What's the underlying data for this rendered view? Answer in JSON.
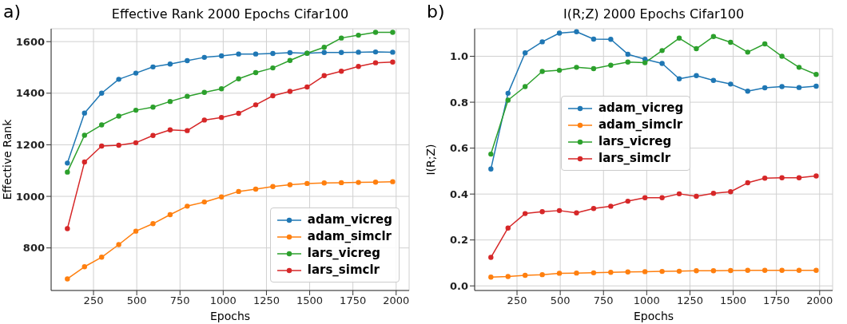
{
  "chart_data": [
    {
      "type": "line",
      "title": "Effective Rank 2000 Epochs Cifar100",
      "xlabel": "Epochs",
      "ylabel": "Effective Rank",
      "annotations": [
        "a)"
      ],
      "x": [
        99,
        198,
        297,
        396,
        495,
        594,
        693,
        792,
        891,
        990,
        1089,
        1188,
        1287,
        1386,
        1485,
        1584,
        1683,
        1782,
        1881,
        1980
      ],
      "series": [
        {
          "name": "adam_vicreg",
          "color": "#1f77b4",
          "values": [
            1129,
            1323,
            1400,
            1454,
            1478,
            1502,
            1513,
            1526,
            1539,
            1545,
            1552,
            1552,
            1554,
            1557,
            1555,
            1558,
            1558,
            1559,
            1560,
            1559
          ]
        },
        {
          "name": "adam_simclr",
          "color": "#ff7f0e",
          "values": [
            680,
            727,
            764,
            813,
            865,
            894,
            929,
            962,
            978,
            998,
            1019,
            1028,
            1038,
            1045,
            1050,
            1052,
            1053,
            1054,
            1055,
            1057
          ]
        },
        {
          "name": "lars_vicreg",
          "color": "#2ca02c",
          "values": [
            1094,
            1237,
            1277,
            1311,
            1334,
            1346,
            1368,
            1388,
            1403,
            1417,
            1456,
            1480,
            1498,
            1527,
            1555,
            1578,
            1614,
            1625,
            1636,
            1636
          ]
        },
        {
          "name": "lars_simclr",
          "color": "#d62728",
          "values": [
            875,
            1133,
            1195,
            1198,
            1208,
            1236,
            1258,
            1255,
            1296,
            1306,
            1322,
            1355,
            1390,
            1407,
            1424,
            1468,
            1485,
            1504,
            1518,
            1521
          ]
        }
      ],
      "xlim": [
        5,
        2075
      ],
      "xticks": [
        250,
        500,
        750,
        1000,
        1250,
        1500,
        1750,
        2000
      ],
      "ylim": [
        635,
        1650
      ],
      "yticks": [
        800,
        1000,
        1200,
        1400,
        1600
      ],
      "grid": true,
      "legend": "bottom right",
      "marker": "circle",
      "line_style": "solid"
    },
    {
      "type": "line",
      "title": "I(R;Z) 2000 Epochs Cifar100",
      "xlabel": "Epochs",
      "ylabel": "I(R;Z)",
      "annotations": [
        "b)"
      ],
      "x": [
        99,
        198,
        297,
        396,
        495,
        594,
        693,
        792,
        891,
        990,
        1089,
        1188,
        1287,
        1386,
        1485,
        1584,
        1683,
        1782,
        1881,
        1980
      ],
      "series": [
        {
          "name": "adam_vicreg",
          "color": "#1f77b4",
          "values": [
            0.509,
            0.839,
            1.015,
            1.063,
            1.101,
            1.107,
            1.075,
            1.074,
            1.009,
            0.987,
            0.969,
            0.902,
            0.916,
            0.895,
            0.879,
            0.848,
            0.863,
            0.868,
            0.864,
            0.87
          ]
        },
        {
          "name": "adam_simclr",
          "color": "#ff7f0e",
          "values": [
            0.038,
            0.041,
            0.046,
            0.049,
            0.055,
            0.056,
            0.057,
            0.059,
            0.061,
            0.062,
            0.063,
            0.064,
            0.066,
            0.066,
            0.067,
            0.068,
            0.068,
            0.068,
            0.068,
            0.068
          ]
        },
        {
          "name": "lars_vicreg",
          "color": "#2ca02c",
          "values": [
            0.574,
            0.809,
            0.868,
            0.934,
            0.939,
            0.952,
            0.946,
            0.961,
            0.975,
            0.972,
            1.025,
            1.079,
            1.033,
            1.086,
            1.061,
            1.018,
            1.054,
            1.0,
            0.952,
            0.921
          ]
        },
        {
          "name": "lars_simclr",
          "color": "#d62728",
          "values": [
            0.124,
            0.252,
            0.315,
            0.323,
            0.328,
            0.318,
            0.337,
            0.347,
            0.369,
            0.384,
            0.384,
            0.401,
            0.39,
            0.403,
            0.41,
            0.449,
            0.469,
            0.471,
            0.471,
            0.479
          ]
        }
      ],
      "xlim": [
        5,
        2075
      ],
      "xticks": [
        250,
        500,
        750,
        1000,
        1250,
        1500,
        1750,
        2000
      ],
      "ylim": [
        -0.02,
        1.12
      ],
      "yticks": [
        {
          "value": 0,
          "label": "0.0"
        },
        0.2,
        0.4,
        0.6,
        0.8,
        {
          "value": 1,
          "label": "1.0"
        }
      ],
      "grid": true,
      "legend": "center",
      "marker": "circle",
      "line_style": "solid"
    }
  ]
}
